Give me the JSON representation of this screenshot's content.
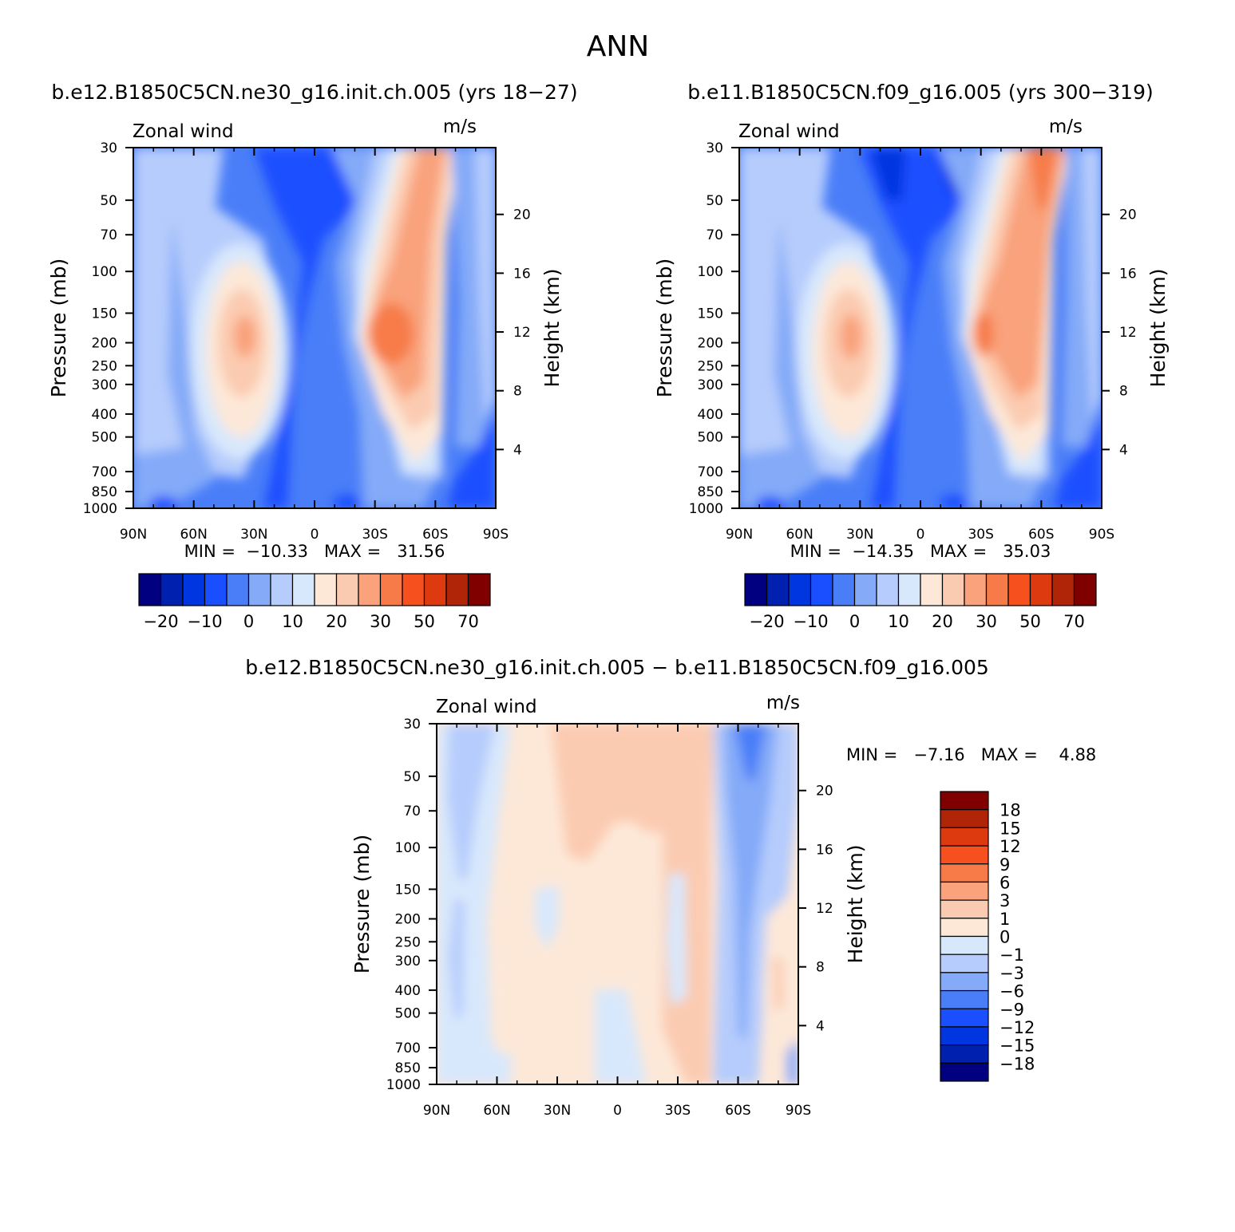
{
  "figure": {
    "title": "ANN"
  },
  "chart_data": [
    {
      "type": "heatmap",
      "title": "b.e12.B1850C5CN.ne30_g16.init.ch.005 (yrs 18−27)",
      "subtitle_left": "Zonal wind",
      "subtitle_right": "m/s",
      "ylabel": "Pressure (mb)",
      "ylabel_right": "Height (km)",
      "x_ticks": [
        "90N",
        "60N",
        "30N",
        "0",
        "30S",
        "60S",
        "90S"
      ],
      "x_values": [
        90,
        60,
        30,
        0,
        -30,
        -60,
        -90
      ],
      "y_ticks": [
        30,
        50,
        70,
        100,
        150,
        200,
        250,
        300,
        400,
        500,
        700,
        850,
        1000
      ],
      "y_range": [
        1000,
        30
      ],
      "y_scale": "log",
      "height_ticks": [
        4,
        8,
        12,
        16,
        20
      ],
      "min_label": "MIN =  −10.33   MAX =   31.56",
      "min": -10.33,
      "max": 31.56,
      "colorbar": {
        "orientation": "horizontal",
        "labels": [
          "−20",
          "−10",
          "0",
          "10",
          "20",
          "30",
          "50",
          "70"
        ],
        "colors": [
          "#000080",
          "#0020b0",
          "#0036e0",
          "#1a4fff",
          "#4a7ef8",
          "#84aaf8",
          "#b6ccfc",
          "#d8e8fc",
          "#fde8d8",
          "#fbcbb1",
          "#f9a27c",
          "#f77b48",
          "#f5501e",
          "#dd3a10",
          "#b02408",
          "#800000"
        ]
      },
      "jets": [
        {
          "lat": 36,
          "p": 200,
          "peak": 24
        },
        {
          "lat": -33,
          "p": 200,
          "peak": 31.56
        }
      ]
    },
    {
      "type": "heatmap",
      "title": "b.e11.B1850C5CN.f09_g16.005 (yrs 300−319)",
      "subtitle_left": "Zonal wind",
      "subtitle_right": "m/s",
      "ylabel": "Pressure (mb)",
      "ylabel_right": "Height (km)",
      "x_ticks": [
        "90N",
        "60N",
        "30N",
        "0",
        "30S",
        "60S",
        "90S"
      ],
      "x_values": [
        90,
        60,
        30,
        0,
        -30,
        -60,
        -90
      ],
      "y_ticks": [
        30,
        50,
        70,
        100,
        150,
        200,
        250,
        300,
        400,
        500,
        700,
        850,
        1000
      ],
      "y_range": [
        1000,
        30
      ],
      "y_scale": "log",
      "height_ticks": [
        4,
        8,
        12,
        16,
        20
      ],
      "min_label": "MIN =  −14.35   MAX =   35.03",
      "min": -14.35,
      "max": 35.03,
      "colorbar": {
        "orientation": "horizontal",
        "labels": [
          "−20",
          "−10",
          "0",
          "10",
          "20",
          "30",
          "50",
          "70"
        ],
        "colors": [
          "#000080",
          "#0020b0",
          "#0036e0",
          "#1a4fff",
          "#4a7ef8",
          "#84aaf8",
          "#b6ccfc",
          "#d8e8fc",
          "#fde8d8",
          "#fbcbb1",
          "#f9a27c",
          "#f77b48",
          "#f5501e",
          "#dd3a10",
          "#b02408",
          "#800000"
        ]
      },
      "jets": [
        {
          "lat": 36,
          "p": 200,
          "peak": 25
        },
        {
          "lat": -33,
          "p": 200,
          "peak": 35.03
        }
      ]
    },
    {
      "type": "heatmap",
      "title": "b.e12.B1850C5CN.ne30_g16.init.ch.005 − b.e11.B1850C5CN.f09_g16.005",
      "subtitle_left": "Zonal wind",
      "subtitle_right": "m/s",
      "ylabel": "Pressure (mb)",
      "ylabel_right": "Height (km)",
      "x_ticks": [
        "90N",
        "60N",
        "30N",
        "0",
        "30S",
        "60S",
        "90S"
      ],
      "x_values": [
        90,
        60,
        30,
        0,
        -30,
        -60,
        -90
      ],
      "y_ticks": [
        30,
        50,
        70,
        100,
        150,
        200,
        250,
        300,
        400,
        500,
        700,
        850,
        1000
      ],
      "y_range": [
        1000,
        30
      ],
      "y_scale": "log",
      "height_ticks": [
        4,
        8,
        12,
        16,
        20
      ],
      "min_label": "MIN =   −7.16   MAX =    4.88",
      "min": -7.16,
      "max": 4.88,
      "colorbar": {
        "orientation": "vertical",
        "labels": [
          "18",
          "15",
          "12",
          "9",
          "6",
          "3",
          "1",
          "0",
          "−1",
          "−3",
          "−6",
          "−9",
          "−12",
          "−15",
          "−18"
        ],
        "colors": [
          "#800000",
          "#b02408",
          "#dd3a10",
          "#f5501e",
          "#f77b48",
          "#f9a27c",
          "#fbcbb1",
          "#fde8d8",
          "#d8e8fc",
          "#b6ccfc",
          "#84aaf8",
          "#4a7ef8",
          "#1a4fff",
          "#0036e0",
          "#0020b0",
          "#000080"
        ]
      }
    }
  ]
}
